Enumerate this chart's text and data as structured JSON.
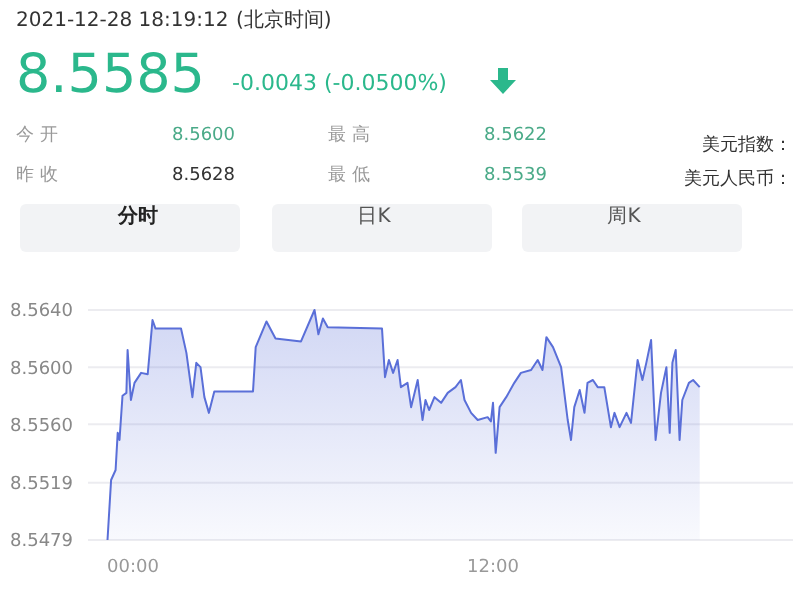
{
  "chart_data": {
    "type": "area",
    "color": "#5a6fd8",
    "annotations": [
      "2021-12-28 18:19:12",
      "(北京时间)",
      "8.5585",
      "-0.0043 (-0.0500%)",
      "今 开",
      "8.5600",
      "最 高",
      "8.5622",
      "美元指数：",
      "昨 收",
      "8.5628",
      "最 低",
      "8.5539",
      "美元人民币：",
      "分时",
      "日K",
      "周K"
    ],
    "x": [
      -0.85,
      -0.73,
      -0.58,
      -0.51,
      -0.45,
      -0.35,
      -0.22,
      -0.18,
      -0.07,
      0.05,
      0.27,
      0.49,
      0.65,
      0.75,
      1.6,
      1.78,
      1.98,
      2.11,
      2.25,
      2.38,
      2.53,
      2.71,
      4.0,
      4.09,
      4.45,
      4.75,
      5.6,
      6.05,
      6.18,
      6.33,
      6.49,
      8.3,
      8.4,
      8.53,
      8.67,
      8.82,
      8.93,
      9.15,
      9.27,
      9.49,
      9.65,
      9.75,
      9.87,
      10.05,
      10.27,
      10.49,
      10.75,
      10.93,
      11.05,
      11.27,
      11.49,
      11.82,
      11.93,
      12.0,
      12.09,
      12.22,
      12.44,
      12.71,
      12.93,
      13.27,
      13.49,
      13.65,
      13.78,
      14.0,
      14.27,
      14.49,
      14.6,
      14.71,
      14.89,
      15.05,
      15.15,
      15.33,
      15.49,
      15.71,
      15.93,
      16.05,
      16.22,
      16.45,
      16.6,
      16.82,
      16.98,
      17.11,
      17.27,
      17.42,
      17.6,
      17.78,
      17.89,
      17.98,
      18.09,
      18.22,
      18.31,
      18.53,
      18.67,
      18.89
    ],
    "values": [
      8.5479,
      8.5521,
      8.5528,
      8.5554,
      8.5549,
      8.558,
      8.5582,
      8.5612,
      8.5577,
      8.5589,
      8.5596,
      8.5595,
      8.5633,
      8.5627,
      8.5627,
      8.561,
      8.5579,
      8.5603,
      8.56,
      8.5579,
      8.5568,
      8.5583,
      8.5583,
      8.5614,
      8.5632,
      8.562,
      8.5618,
      8.564,
      8.5623,
      8.5634,
      8.5628,
      8.5627,
      8.5593,
      8.5605,
      8.5596,
      8.5605,
      8.5586,
      8.5589,
      8.5572,
      8.5591,
      8.5563,
      8.5577,
      8.557,
      8.5579,
      8.5575,
      8.5582,
      8.5586,
      8.5591,
      8.5577,
      8.5568,
      8.5563,
      8.5565,
      8.5562,
      8.5575,
      8.554,
      8.5572,
      8.5579,
      8.5589,
      8.5596,
      8.5598,
      8.5605,
      8.5598,
      8.5621,
      8.5614,
      8.56,
      8.5563,
      8.5549,
      8.5572,
      8.5584,
      8.5568,
      8.5589,
      8.5591,
      8.5586,
      8.5586,
      8.5558,
      8.5568,
      8.5558,
      8.5568,
      8.5561,
      8.5605,
      8.5591,
      8.5603,
      8.5619,
      8.5549,
      8.5582,
      8.56,
      8.5554,
      8.5603,
      8.5612,
      8.5549,
      8.5577,
      8.5589,
      8.5591,
      8.5586
    ],
    "xlim": [
      -1.5,
      22
    ],
    "ylim": [
      8.5479,
      8.564
    ],
    "xticks": [
      {
        "value": 0,
        "label": "00:00"
      },
      {
        "value": 12,
        "label": "12:00"
      }
    ],
    "yticks": [
      {
        "value": 8.5479,
        "label": "8.5479"
      },
      {
        "value": 8.5519,
        "label": "8.5519"
      },
      {
        "value": 8.556,
        "label": "8.5560"
      },
      {
        "value": 8.56,
        "label": "8.5600"
      },
      {
        "value": 8.564,
        "label": "8.5640"
      }
    ],
    "grid": "y"
  }
}
